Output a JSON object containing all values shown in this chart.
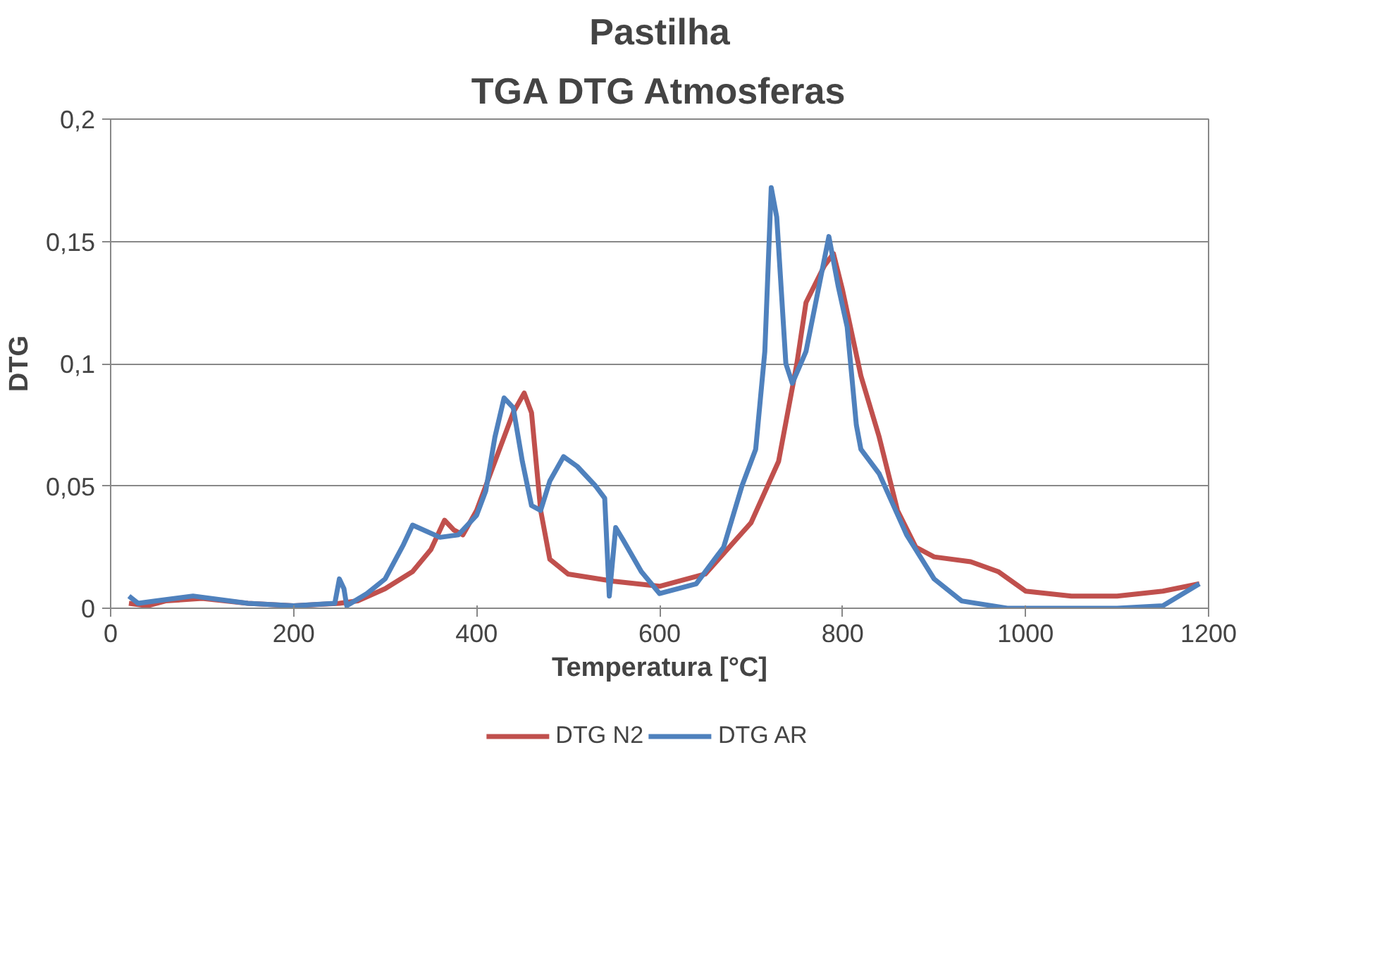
{
  "chart_data": {
    "type": "line",
    "title": "Pastilha",
    "subtitle": "TGA DTG Atmosferas",
    "xlabel": "Temperatura [°C]",
    "ylabel": "DTG",
    "xlim": [
      0,
      1200
    ],
    "xticks": [
      0,
      200,
      400,
      600,
      800,
      1000,
      1200
    ],
    "ylim": [
      0,
      0.2
    ],
    "yticks": [
      {
        "value": 0,
        "label": "0"
      },
      {
        "value": 0.05,
        "label": "0,05"
      },
      {
        "value": 0.1,
        "label": "0,1"
      },
      {
        "value": 0.15,
        "label": "0,15"
      },
      {
        "value": 0.2,
        "label": "0,2"
      }
    ],
    "grid": "y",
    "legend": "bottom",
    "marker": "none",
    "line_style": "solid",
    "series": [
      {
        "name": "DTG N2",
        "color": "#c0504d",
        "x": [
          20,
          40,
          60,
          100,
          150,
          200,
          250,
          270,
          300,
          330,
          350,
          365,
          375,
          385,
          400,
          420,
          440,
          452,
          460,
          470,
          480,
          500,
          550,
          600,
          650,
          700,
          730,
          750,
          760,
          780,
          790,
          800,
          820,
          840,
          860,
          880,
          900,
          940,
          970,
          1000,
          1050,
          1100,
          1150,
          1190
        ],
        "values": [
          0.002,
          0.001,
          0.003,
          0.004,
          0.002,
          0.001,
          0.002,
          0.003,
          0.008,
          0.015,
          0.024,
          0.036,
          0.032,
          0.03,
          0.04,
          0.06,
          0.08,
          0.088,
          0.08,
          0.04,
          0.02,
          0.014,
          0.011,
          0.009,
          0.014,
          0.035,
          0.06,
          0.1,
          0.125,
          0.14,
          0.145,
          0.13,
          0.095,
          0.07,
          0.04,
          0.025,
          0.021,
          0.019,
          0.015,
          0.007,
          0.005,
          0.005,
          0.007,
          0.01
        ]
      },
      {
        "name": "DTG AR",
        "color": "#4f81bd",
        "x": [
          20,
          30,
          50,
          90,
          150,
          200,
          245,
          250,
          255,
          258,
          280,
          300,
          320,
          330,
          360,
          380,
          400,
          410,
          420,
          430,
          440,
          450,
          460,
          470,
          480,
          495,
          510,
          530,
          540,
          545,
          552,
          560,
          580,
          600,
          640,
          670,
          690,
          705,
          715,
          722,
          728,
          738,
          745,
          760,
          785,
          795,
          805,
          815,
          820,
          840,
          870,
          900,
          930,
          980,
          1100,
          1150,
          1190
        ],
        "values": [
          0.005,
          0.002,
          0.003,
          0.005,
          0.002,
          0.001,
          0.002,
          0.012,
          0.008,
          0.001,
          0.006,
          0.012,
          0.026,
          0.034,
          0.029,
          0.03,
          0.038,
          0.048,
          0.07,
          0.086,
          0.082,
          0.06,
          0.042,
          0.04,
          0.052,
          0.062,
          0.058,
          0.05,
          0.045,
          0.005,
          0.033,
          0.028,
          0.015,
          0.006,
          0.01,
          0.025,
          0.05,
          0.065,
          0.105,
          0.172,
          0.16,
          0.1,
          0.092,
          0.105,
          0.152,
          0.132,
          0.115,
          0.075,
          0.065,
          0.055,
          0.03,
          0.012,
          0.003,
          0,
          0,
          0.001,
          0.01
        ]
      }
    ]
  }
}
